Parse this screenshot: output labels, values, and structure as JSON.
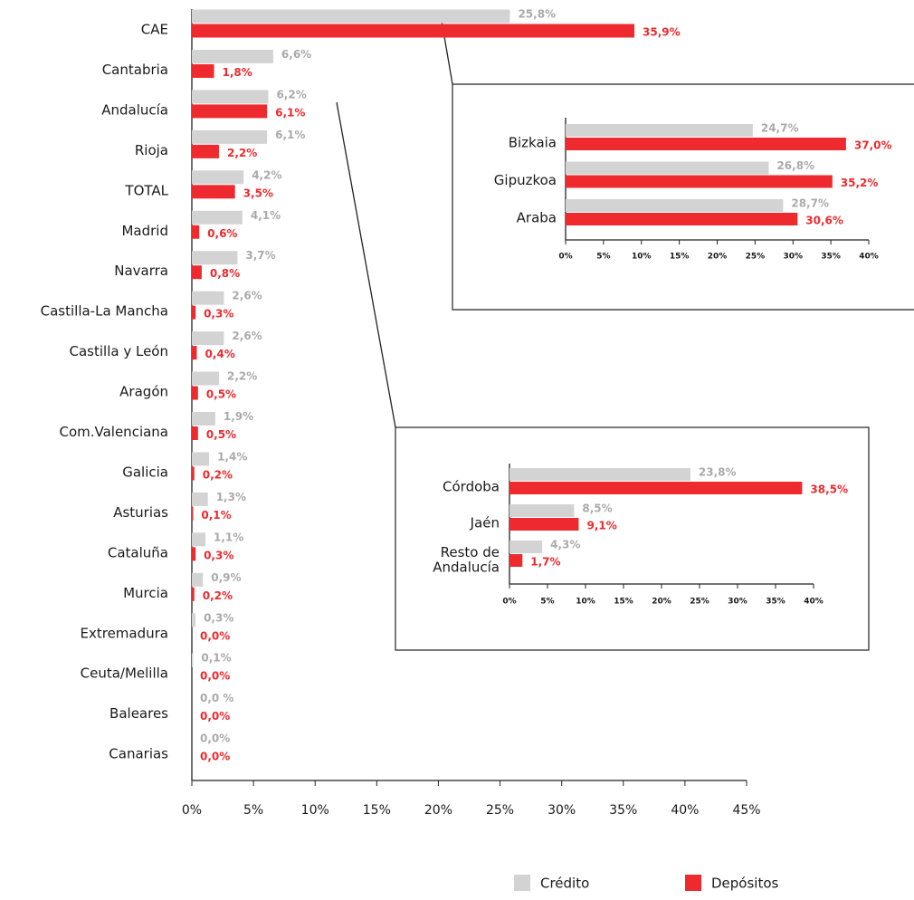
{
  "chart_data": [
    {
      "type": "bar",
      "categories": [
        "CAE",
        "Cantabria",
        "Andalucía",
        "Rioja",
        "TOTAL",
        "Madrid",
        "Navarra",
        "Castilla-La Mancha",
        "Castilla y León",
        "Aragón",
        "Com.Valenciana",
        "Galicia",
        "Asturias",
        "Cataluña",
        "Murcia",
        "Extremadura",
        "Ceuta/Melilla",
        "Baleares",
        "Canarias"
      ],
      "series": [
        {
          "name": "Crédito",
          "color": "#d3d3d3",
          "values": [
            25.8,
            6.6,
            6.2,
            6.1,
            4.2,
            4.1,
            3.7,
            2.6,
            2.6,
            2.2,
            1.9,
            1.4,
            1.3,
            1.1,
            0.9,
            0.3,
            0.1,
            0.0,
            0.0
          ],
          "value_labels": [
            "25,8%",
            "6,6%",
            "6,2%",
            "6,1%",
            "4,2%",
            "4,1%",
            "3,7%",
            "2,6%",
            "2,6%",
            "2,2%",
            "1,9%",
            "1,4%",
            "1,3%",
            "1,1%",
            "0,9%",
            "0,3%",
            "0,1%",
            "0,0 %",
            "0,0%"
          ]
        },
        {
          "name": "Depósitos",
          "color": "#ee2a2e",
          "values": [
            35.9,
            1.8,
            6.1,
            2.2,
            3.5,
            0.6,
            0.8,
            0.3,
            0.4,
            0.5,
            0.5,
            0.2,
            0.1,
            0.3,
            0.2,
            0.0,
            0.0,
            0.0,
            0.0
          ],
          "value_labels": [
            "35,9%",
            "1,8%",
            "6,1%",
            "2,2%",
            "3,5%",
            "0,6%",
            "0,8%",
            "0,3%",
            "0,4%",
            "0,5%",
            "0,5%",
            "0,2%",
            "0,1%",
            "0,3%",
            "0,2%",
            "0,0%",
            "0,0%",
            "0,0%",
            "0,0%"
          ]
        }
      ],
      "xlim": [
        0,
        45
      ],
      "xticks": [
        {
          "value": 0,
          "label": "0%"
        },
        {
          "value": 5,
          "label": "5%"
        },
        {
          "value": 10,
          "label": "10%"
        },
        {
          "value": 15,
          "label": "15%"
        },
        {
          "value": 20,
          "label": "20%"
        },
        {
          "value": 25,
          "label": "25%"
        },
        {
          "value": 30,
          "label": "30%"
        },
        {
          "value": 35,
          "label": "35%"
        },
        {
          "value": 40,
          "label": "40%"
        },
        {
          "value": 45,
          "label": "45%"
        }
      ]
    },
    {
      "type": "bar",
      "categories": [
        "Bizkaia",
        "Gipuzkoa",
        "Araba"
      ],
      "series": [
        {
          "color": "#d3d3d3",
          "values": [
            24.7,
            26.8,
            28.7
          ],
          "value_labels": [
            "24,7%",
            "26,8%",
            "28,7%"
          ]
        },
        {
          "color": "#ee2a2e",
          "values": [
            37.0,
            35.2,
            30.6
          ],
          "value_labels": [
            "37,0%",
            "35,2%",
            "30,6%"
          ]
        }
      ],
      "xlim": [
        0,
        40
      ],
      "xticks": [
        {
          "value": 0,
          "label": "0%"
        },
        {
          "value": 5,
          "label": "5%"
        },
        {
          "value": 10,
          "label": "10%"
        },
        {
          "value": 15,
          "label": "15%"
        },
        {
          "value": 20,
          "label": "20%"
        },
        {
          "value": 25,
          "label": "25%"
        },
        {
          "value": 30,
          "label": "30%"
        },
        {
          "value": 35,
          "label": "35%"
        },
        {
          "value": 40,
          "label": "40%"
        }
      ]
    },
    {
      "type": "bar",
      "categories": [
        "Córdoba",
        "Jaén",
        "Resto de\nAndalucía"
      ],
      "series": [
        {
          "color": "#d3d3d3",
          "values": [
            23.8,
            8.5,
            4.3
          ],
          "value_labels": [
            "23,8%",
            "8,5%",
            "4,3%"
          ]
        },
        {
          "color": "#ee2a2e",
          "values": [
            38.5,
            9.1,
            1.7
          ],
          "value_labels": [
            "38,5%",
            "9,1%",
            "1,7%"
          ]
        }
      ],
      "xlim": [
        0,
        40
      ],
      "xticks": [
        {
          "value": 0,
          "label": "0%"
        },
        {
          "value": 5,
          "label": "5%"
        },
        {
          "value": 10,
          "label": "10%"
        },
        {
          "value": 15,
          "label": "15%"
        },
        {
          "value": 20,
          "label": "20%"
        },
        {
          "value": 25,
          "label": "25%"
        },
        {
          "value": 30,
          "label": "30%"
        },
        {
          "value": 35,
          "label": "35%"
        },
        {
          "value": 40,
          "label": "40%"
        }
      ]
    }
  ]
}
